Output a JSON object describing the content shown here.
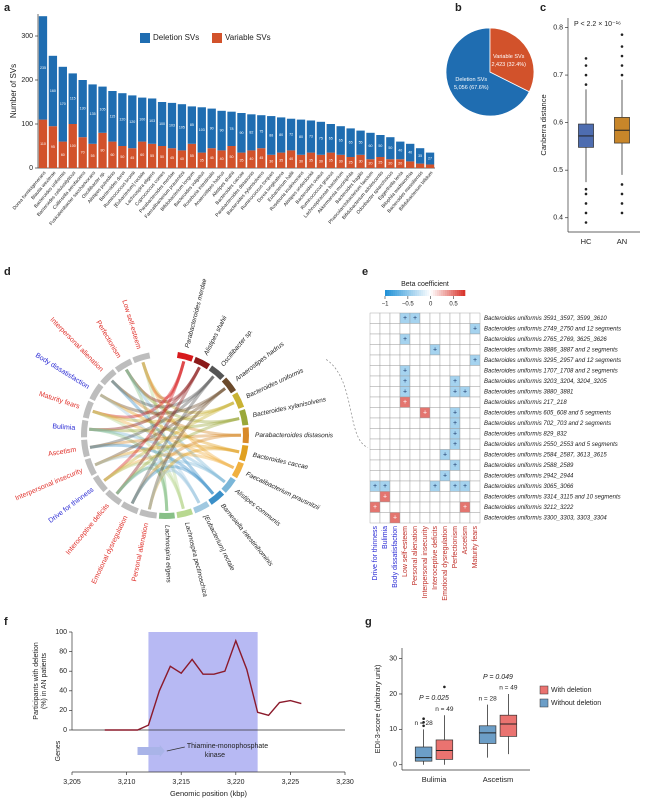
{
  "chart_data": [
    {
      "type": "bar",
      "panel": "a",
      "ylabel": "Number of SVs",
      "ylim": [
        0,
        350
      ],
      "yticks": [
        0,
        100,
        200,
        300
      ],
      "categories": [
        "Dorea formicigenerans",
        "Blautia wexlerae",
        "Bacteroides uniformis",
        "Bacteroides cellulosilyticus",
        "Collinsella aerofaciens",
        "Fusicatenibacter saccharivorans",
        "Oscillibacter sp.",
        "Alistipes putredinis",
        "Bacteroides dorei",
        "Ruminococcus bromii",
        "[Eubacterium] rectale",
        "Lachnospira eligens",
        "Coprococcus comes",
        "Parabacteroides merdae",
        "Faecalibacterium prausnitzii",
        "Bifidobacterium longum",
        "Bacteroides vulgatus",
        "Roseburia intestinalis",
        "Anaerostipes hadrus",
        "Alistipes shahii",
        "Bacteroides caccae",
        "Parabacteroides distasonis",
        "Bacteroides xylanisolvens",
        "Ruminococcus torques",
        "Dorea longicatena",
        "Eubacterium hallii",
        "Roseburia inulinivorans",
        "Alistipes onderdonkii",
        "Bacteroides ovatus",
        "Ruminococcus gnavus",
        "Lachnospiraceae bacterium",
        "Akkermansia muciniphila",
        "Bacteroides fragilis",
        "Phascolarctobacterium faecium",
        "Bifidobacterium adolescentis",
        "Odoribacter splanchnicus",
        "Eggerthella lenta",
        "Bilophila wadsworthia",
        "Bacteroides massiliensis",
        "Bifidobacterium bifidum"
      ],
      "series": [
        {
          "name": "Variable SVs",
          "color": "#d2522b",
          "values": [
            110,
            95,
            60,
            100,
            70,
            55,
            80,
            60,
            50,
            45,
            60,
            55,
            50,
            45,
            40,
            55,
            35,
            45,
            40,
            50,
            35,
            40,
            45,
            30,
            35,
            40,
            30,
            35,
            30,
            35,
            30,
            25,
            30,
            20,
            25,
            20,
            20,
            15,
            10,
            8
          ]
        },
        {
          "name": "Deletion SVs",
          "color": "#1f6db1",
          "values": [
            235,
            160,
            170,
            115,
            130,
            135,
            105,
            115,
            120,
            120,
            100,
            103,
            100,
            103,
            105,
            85,
            103,
            90,
            90,
            78,
            90,
            82,
            75,
            88,
            80,
            72,
            80,
            73,
            75,
            65,
            65,
            65,
            55,
            60,
            50,
            50,
            40,
            40,
            35,
            27
          ]
        }
      ]
    },
    {
      "type": "pie",
      "panel": "b",
      "categories": [
        "Deletion SVs",
        "Variable SVs"
      ],
      "values": [
        67.6,
        32.4
      ],
      "value_labels": [
        "5,056 (67.6%)",
        "2,423 (32.4%)"
      ],
      "colors": [
        "#1f6db1",
        "#d2522b"
      ]
    },
    {
      "type": "box",
      "panel": "c",
      "ylabel": "Canberra distance",
      "annotation": "P < 2.2 × 10⁻¹⁶",
      "ylim": [
        0.37,
        0.82
      ],
      "yticks": [
        0.4,
        0.5,
        0.6,
        0.7,
        0.8
      ],
      "categories": [
        "HC",
        "AN"
      ],
      "series": [
        {
          "colors": [
            "#4e6db0",
            "#c8862a"
          ],
          "boxes": [
            {
              "whislo": 0.475,
              "q1": 0.548,
              "med": 0.572,
              "q3": 0.597,
              "whishi": 0.67,
              "fliers": [
                0.39,
                0.41,
                0.43,
                0.45,
                0.46,
                0.68,
                0.7,
                0.72,
                0.735
              ]
            },
            {
              "whislo": 0.49,
              "q1": 0.557,
              "med": 0.584,
              "q3": 0.611,
              "whishi": 0.69,
              "fliers": [
                0.41,
                0.43,
                0.45,
                0.47,
                0.7,
                0.72,
                0.74,
                0.76,
                0.785
              ]
            }
          ]
        }
      ]
    },
    {
      "type": "chord",
      "panel": "d",
      "left": [
        {
          "label": "Low self-esteem",
          "color": "#e0302a"
        },
        {
          "label": "Perfectionism",
          "color": "#e0302a"
        },
        {
          "label": "Interpersonal alienation",
          "color": "#e0302a"
        },
        {
          "label": "Body dissatisfaction",
          "color": "#2a2ad4"
        },
        {
          "label": "Maturity fears",
          "color": "#e0302a"
        },
        {
          "label": "Bulimia",
          "color": "#2a2ad4"
        },
        {
          "label": "Ascetism",
          "color": "#e0302a"
        },
        {
          "label": "Interpersonal insecurity",
          "color": "#e0302a"
        },
        {
          "label": "Drive for thinness",
          "color": "#2a2ad4"
        },
        {
          "label": "Interoceptive deficits",
          "color": "#e0302a"
        },
        {
          "label": "Emotional dysregulation",
          "color": "#e0302a"
        },
        {
          "label": "Personal alienation",
          "color": "#e0302a"
        }
      ],
      "right": [
        {
          "label": "Parabacteroides merdae",
          "color": "#d7191c"
        },
        {
          "label": "Alistipes shahii",
          "color": "#8b1a1a"
        },
        {
          "label": "Oscillibacter sp.",
          "color": "#555555"
        },
        {
          "label": "Anaerostipes hadrus",
          "color": "#6b4a2b"
        },
        {
          "label": "Bacteroides uniformis",
          "color": "#c9b233"
        },
        {
          "label": "Bacteroides xylanisolvens",
          "color": "#9aa83a"
        },
        {
          "label": "Parabacteroides distasonis",
          "color": "#d88a2a"
        },
        {
          "label": "Bacteroides caccae",
          "color": "#e0a020"
        },
        {
          "label": "Faecalibacterium prausnitzii",
          "color": "#f0b040"
        },
        {
          "label": "Alistipes communis",
          "color": "#7ab6d8"
        },
        {
          "label": "Barnesiella intestinihominis",
          "color": "#3a8fc8"
        },
        {
          "label": "[Eubacterium] rectale",
          "color": "#a0c8e0"
        },
        {
          "label": "Lachnospira pectinoschiza",
          "color": "#b8d890"
        },
        {
          "label": "Lachnospira eligens",
          "color": "#88c088"
        }
      ]
    },
    {
      "type": "heatmap",
      "panel": "e",
      "colorbar_title": "Beta coefficient",
      "clim": [
        -1,
        0.75
      ],
      "cticks": [
        {
          "value": -1,
          "label": "−1"
        },
        {
          "value": -0.5,
          "label": "−0.5"
        },
        0,
        0.5
      ],
      "mark_label": "+",
      "rows": [
        "Bacteroides uniformis 3591_3597, 3599_3610",
        "Bacteroides uniformis 2749_2750 and 12 segments",
        "Bacteroides uniformis 2765_2769, 3625_3626",
        "Bacteroides uniformis 3886_3887 and 2 segments",
        "Bacteroides uniformis 3295_2957 and 12 segments",
        "Bacteroides uniformis 1707_1708 and 2 segments",
        "Bacteroides uniformis 3203_3204, 3204_3205",
        "Bacteroides uniformis 3880_3881",
        "Bacteroides uniformis 217_218",
        "Bacteroides uniformis 605_608 and 5 segments",
        "Bacteroides uniformis 702_703 and 2 segments",
        "Bacteroides uniformis 829_832",
        "Bacteroides uniformis 2550_2553 and 5 segments",
        "Bacteroides uniformis 2584_2587, 3613_3615",
        "Bacteroides uniformis 2588_2589",
        "Bacteroides uniformis 2942_2944",
        "Bacteroides uniformis 3065_3066",
        "Bacteroides uniformis 3314_3115 and 10 segments",
        "Bacteroides uniformis 3212_3222",
        "Bacteroides uniformis 3300_3303, 3303_3304"
      ],
      "columns": [
        "Drive for thinness",
        "Bulimia",
        "Body dissatisfaction",
        "Low self-esteem",
        "Personal alienation",
        "Interpersonal insecurity",
        "Interoceptive deficits",
        "Emotional dysregulation",
        "Perfectionism",
        "Ascetism",
        "Maturity fears"
      ],
      "column_colors": [
        "#2a2ad4",
        "#2a2ad4",
        "#2a2ad4",
        "#c0302a",
        "#c0302a",
        "#c0302a",
        "#c0302a",
        "#c0302a",
        "#c0302a",
        "#c0302a",
        "#c0302a"
      ],
      "values": [
        [
          null,
          null,
          null,
          -0.4,
          -0.4,
          null,
          null,
          null,
          null,
          null,
          null
        ],
        [
          null,
          null,
          null,
          null,
          null,
          null,
          null,
          null,
          null,
          null,
          -0.4
        ],
        [
          null,
          null,
          null,
          -0.4,
          null,
          null,
          null,
          null,
          null,
          null,
          null
        ],
        [
          null,
          null,
          null,
          null,
          null,
          null,
          -0.4,
          null,
          null,
          null,
          null
        ],
        [
          null,
          null,
          null,
          null,
          null,
          null,
          null,
          null,
          null,
          null,
          -0.4
        ],
        [
          null,
          null,
          null,
          -0.4,
          null,
          null,
          null,
          null,
          null,
          null,
          null
        ],
        [
          null,
          null,
          null,
          -0.4,
          null,
          null,
          null,
          null,
          -0.4,
          null,
          null
        ],
        [
          null,
          null,
          null,
          -0.4,
          null,
          null,
          null,
          null,
          -0.4,
          -0.4,
          null
        ],
        [
          null,
          null,
          null,
          0.5,
          null,
          null,
          null,
          null,
          null,
          null,
          null
        ],
        [
          null,
          null,
          null,
          null,
          null,
          0.5,
          null,
          null,
          -0.4,
          null,
          null
        ],
        [
          null,
          null,
          null,
          null,
          null,
          null,
          null,
          null,
          -0.4,
          null,
          null
        ],
        [
          null,
          null,
          null,
          null,
          null,
          null,
          null,
          null,
          -0.4,
          null,
          null
        ],
        [
          null,
          null,
          null,
          null,
          null,
          null,
          null,
          null,
          -0.4,
          null,
          null
        ],
        [
          null,
          null,
          null,
          null,
          null,
          null,
          null,
          -0.4,
          null,
          null,
          null
        ],
        [
          null,
          null,
          null,
          null,
          null,
          null,
          null,
          null,
          -0.4,
          null,
          null
        ],
        [
          null,
          null,
          null,
          null,
          null,
          null,
          null,
          -0.4,
          null,
          null,
          null
        ],
        [
          -0.4,
          -0.4,
          null,
          null,
          null,
          null,
          -0.4,
          null,
          -0.4,
          -0.4,
          null
        ],
        [
          null,
          0.5,
          null,
          null,
          null,
          null,
          null,
          null,
          null,
          null,
          null
        ],
        [
          0.5,
          null,
          null,
          null,
          null,
          null,
          null,
          null,
          null,
          0.5,
          null
        ],
        [
          null,
          null,
          0.5,
          null,
          null,
          null,
          null,
          null,
          null,
          null,
          null
        ]
      ]
    },
    {
      "type": "line",
      "panel": "f",
      "ylabel": [
        "Participants with deletion",
        "(%) in AN patients"
      ],
      "xlabel": "Genomic position (kbp)",
      "track_label": "Genes",
      "xlim": [
        3205,
        3230
      ],
      "xticks": [
        {
          "value": 3205,
          "label": "3,205"
        },
        {
          "value": 3210,
          "label": "3,210"
        },
        {
          "value": 3215,
          "label": "3,215"
        },
        {
          "value": 3220,
          "label": "3,220"
        },
        {
          "value": 3225,
          "label": "3,225"
        },
        {
          "value": 3230,
          "label": "3,230"
        }
      ],
      "ylim": [
        0,
        100
      ],
      "yticks": [
        0,
        20,
        40,
        60,
        80,
        100
      ],
      "highlight": [
        3212,
        3222
      ],
      "color": "#8b1a2b",
      "x": [
        3208,
        3211,
        3212,
        3213,
        3214,
        3215,
        3216,
        3217,
        3218,
        3219,
        3220,
        3221,
        3222,
        3223,
        3224,
        3225,
        3226
      ],
      "values": [
        0,
        0,
        5,
        40,
        65,
        58,
        72,
        57,
        57,
        60,
        91,
        62,
        18,
        15,
        28,
        30,
        27
      ],
      "gene": {
        "label": [
          "Thiamine-monophosphate",
          "kinase"
        ],
        "start": 3211,
        "end": 3213.5
      }
    },
    {
      "type": "box",
      "panel": "g",
      "ylabel": "EDI-3-score (arbitrary unit)",
      "ylim": [
        -1.5,
        33
      ],
      "yticks": [
        0,
        10,
        20,
        30
      ],
      "categories": [
        "Bulimia",
        "Ascetism"
      ],
      "p_labels": [
        "P = 0.025",
        "P = 0.049"
      ],
      "series": [
        {
          "name": "Without deletion",
          "color": "#6c9ec7",
          "n_labels": [
            "n = 28",
            "n = 28"
          ],
          "boxes": [
            {
              "whislo": 0,
              "q1": 1,
              "med": 2,
              "q3": 5,
              "whishi": 10,
              "fliers": [
                11,
                12,
                13
              ]
            },
            {
              "whislo": 2,
              "q1": 6,
              "med": 9,
              "q3": 11,
              "whishi": 17,
              "fliers": []
            }
          ]
        },
        {
          "name": "With deletion",
          "color": "#ea7370",
          "n_labels": [
            "n = 49",
            "n = 49"
          ],
          "boxes": [
            {
              "whislo": 0,
              "q1": 1.5,
              "med": 4,
              "q3": 7,
              "whishi": 14,
              "fliers": [
                22
              ]
            },
            {
              "whislo": 3,
              "q1": 8,
              "med": 11.5,
              "q3": 14,
              "whishi": 20,
              "fliers": []
            }
          ]
        }
      ]
    }
  ]
}
